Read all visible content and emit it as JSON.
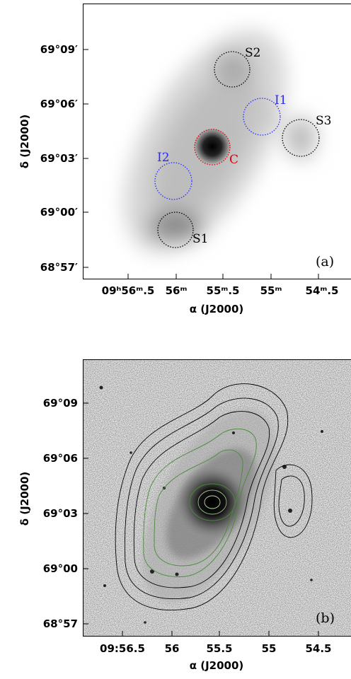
{
  "panel_a": {
    "tag": "(a)",
    "ylabel": "δ (J2000)",
    "xlabel": "α (J2000)",
    "yticks": [
      "69°09′",
      "69°06′",
      "69°03′",
      "69°00′",
      "68°57′"
    ],
    "xticks": [
      "09ʰ56ᵐ.5",
      "56ᵐ",
      "55ᵐ.5",
      "55ᵐ",
      "54ᵐ.5"
    ],
    "regions": [
      "S2",
      "I1",
      "S3",
      "C",
      "I2",
      "S1"
    ]
  },
  "panel_b": {
    "tag": "(b)",
    "ylabel": "δ (J2000)",
    "xlabel": "α (J2000)",
    "yticks": [
      "69°09",
      "69°06",
      "69°03",
      "69°00",
      "68°57"
    ],
    "xticks": [
      "09:56.5",
      "56",
      "55.5",
      "55",
      "54.5"
    ]
  }
}
